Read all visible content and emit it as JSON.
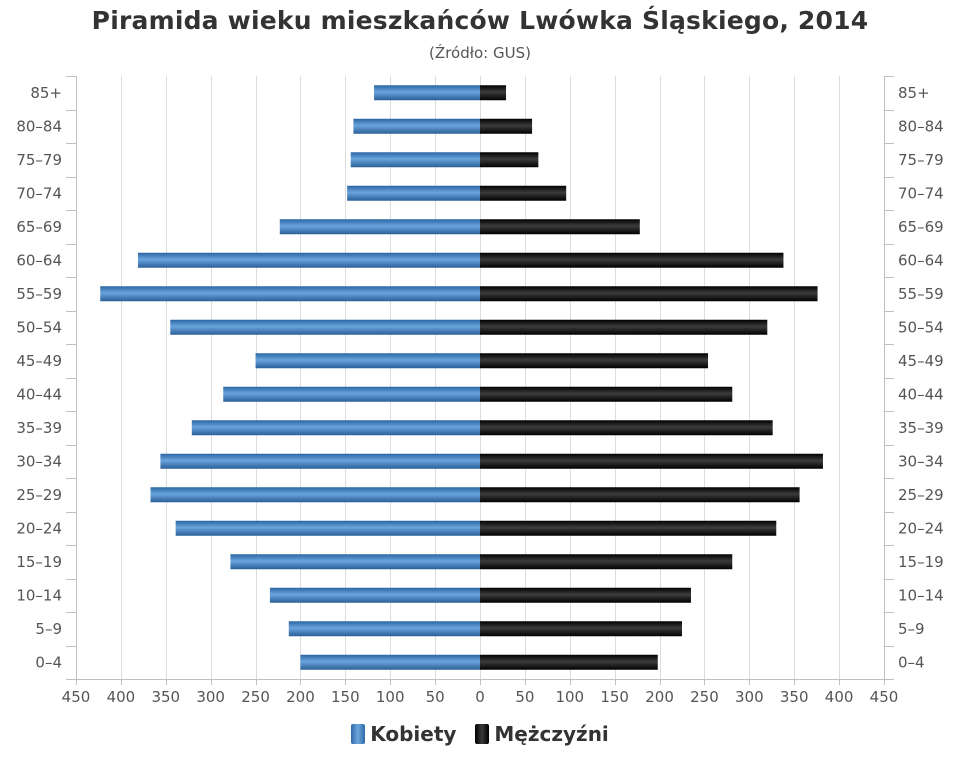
{
  "header": {
    "title": "Piramida wieku mieszkańców Lwówka Śląskiego, 2014",
    "subtitle": "(Źródło: GUS)"
  },
  "colors": {
    "female": "#4682c8",
    "male": "#1a1a1a",
    "grid": "#dddddd",
    "text": "#555555"
  },
  "chart_data": {
    "type": "bar",
    "orientation": "horizontal-population-pyramid",
    "title": "Piramida wieku mieszkańców Lwówka Śląskiego, 2014",
    "subtitle": "(Źródło: GUS)",
    "categories": [
      "0–4",
      "5–9",
      "10–14",
      "15–19",
      "20–24",
      "25–29",
      "30–34",
      "35–39",
      "40–44",
      "45–49",
      "50–54",
      "55–59",
      "60–64",
      "65–69",
      "70–74",
      "75–79",
      "80–84",
      "85+"
    ],
    "series": [
      {
        "name": "Kobiety",
        "values": [
          200,
          213,
          234,
          278,
          339,
          367,
          356,
          321,
          286,
          250,
          345,
          423,
          381,
          223,
          148,
          144,
          141,
          118
        ]
      },
      {
        "name": "Mężczyźni",
        "values": [
          198,
          225,
          235,
          281,
          330,
          356,
          382,
          326,
          281,
          254,
          320,
          376,
          338,
          178,
          96,
          65,
          58,
          29
        ]
      }
    ],
    "xlim": [
      -450,
      450
    ],
    "ticks": [
      -450,
      -400,
      -350,
      -300,
      -250,
      -200,
      -150,
      -100,
      -50,
      0,
      50,
      100,
      150,
      200,
      250,
      300,
      350,
      400,
      450
    ],
    "tick_labels": [
      "450",
      "400",
      "350",
      "300",
      "250",
      "200",
      "150",
      "100",
      "50",
      "0",
      "50",
      "100",
      "150",
      "200",
      "250",
      "300",
      "350",
      "400",
      "450"
    ],
    "grid": true,
    "legend": "bottom-center"
  },
  "legend": {
    "items": [
      "Kobiety",
      "Mężczyźni"
    ]
  }
}
